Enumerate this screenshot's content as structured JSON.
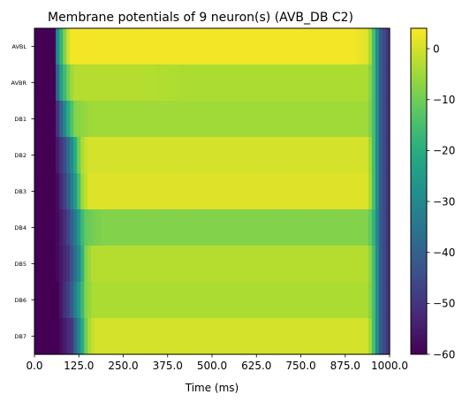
{
  "chart_data": {
    "type": "heatmap",
    "title": "Membrane potentials of 9 neuron(s) (AVB_DB C2)",
    "xlabel": "Time (ms)",
    "ylabel": "",
    "xlim": [
      0,
      1000
    ],
    "x_ticks": [
      "0.0",
      "125.0",
      "250.0",
      "375.0",
      "500.0",
      "625.0",
      "750.0",
      "875.0",
      "1000.0"
    ],
    "rows": [
      "AVBL",
      "AVBR",
      "DB1",
      "DB2",
      "DB3",
      "DB4",
      "DB5",
      "DB6",
      "DB7"
    ],
    "colorbar": {
      "colormap": "viridis",
      "vmin": -60,
      "vmax": 4,
      "ticks": [
        "0",
        "−10",
        "−20",
        "−30",
        "−40",
        "−50",
        "−60"
      ]
    },
    "series": [
      {
        "name": "AVBL",
        "knots": [
          [
            0,
            -60
          ],
          [
            55,
            -60
          ],
          [
            65,
            -30
          ],
          [
            80,
            -12
          ],
          [
            100,
            3
          ],
          [
            900,
            3
          ],
          [
            940,
            1
          ],
          [
            955,
            -15
          ],
          [
            975,
            -42
          ],
          [
            1000,
            -52
          ]
        ]
      },
      {
        "name": "AVBR",
        "knots": [
          [
            0,
            -60
          ],
          [
            55,
            -60
          ],
          [
            70,
            -28
          ],
          [
            90,
            -12
          ],
          [
            110,
            -3
          ],
          [
            300,
            -3
          ],
          [
            450,
            -4
          ],
          [
            940,
            -4
          ],
          [
            955,
            -15
          ],
          [
            975,
            -42
          ],
          [
            1000,
            -52
          ]
        ]
      },
      {
        "name": "DB1",
        "knots": [
          [
            0,
            -60
          ],
          [
            55,
            -60
          ],
          [
            75,
            -40
          ],
          [
            95,
            -20
          ],
          [
            115,
            -8
          ],
          [
            160,
            -5
          ],
          [
            940,
            -5
          ],
          [
            955,
            -15
          ],
          [
            975,
            -42
          ],
          [
            1000,
            -52
          ]
        ]
      },
      {
        "name": "DB2",
        "knots": [
          [
            0,
            -60
          ],
          [
            55,
            -60
          ],
          [
            85,
            -45
          ],
          [
            110,
            -25
          ],
          [
            130,
            -5
          ],
          [
            150,
            0
          ],
          [
            940,
            0
          ],
          [
            955,
            -15
          ],
          [
            975,
            -42
          ],
          [
            1000,
            -52
          ]
        ]
      },
      {
        "name": "DB3",
        "knots": [
          [
            0,
            -60
          ],
          [
            60,
            -60
          ],
          [
            90,
            -45
          ],
          [
            115,
            -25
          ],
          [
            135,
            -5
          ],
          [
            155,
            1
          ],
          [
            940,
            1
          ],
          [
            955,
            -15
          ],
          [
            975,
            -42
          ],
          [
            1000,
            -52
          ]
        ]
      },
      {
        "name": "DB4",
        "knots": [
          [
            0,
            -60
          ],
          [
            60,
            -60
          ],
          [
            90,
            -50
          ],
          [
            120,
            -30
          ],
          [
            140,
            -12
          ],
          [
            170,
            -9
          ],
          [
            200,
            -8
          ],
          [
            940,
            -8
          ],
          [
            955,
            -18
          ],
          [
            975,
            -42
          ],
          [
            1000,
            -52
          ]
        ]
      },
      {
        "name": "DB5",
        "knots": [
          [
            0,
            -60
          ],
          [
            60,
            -60
          ],
          [
            95,
            -50
          ],
          [
            125,
            -30
          ],
          [
            145,
            -8
          ],
          [
            165,
            -3
          ],
          [
            940,
            -3
          ],
          [
            955,
            -15
          ],
          [
            975,
            -42
          ],
          [
            1000,
            -52
          ]
        ]
      },
      {
        "name": "DB6",
        "knots": [
          [
            0,
            -60
          ],
          [
            65,
            -60
          ],
          [
            100,
            -45
          ],
          [
            125,
            -25
          ],
          [
            145,
            -8
          ],
          [
            165,
            -4
          ],
          [
            940,
            -4
          ],
          [
            955,
            -15
          ],
          [
            975,
            -42
          ],
          [
            1000,
            -52
          ]
        ]
      },
      {
        "name": "DB7",
        "knots": [
          [
            0,
            -60
          ],
          [
            65,
            -60
          ],
          [
            105,
            -50
          ],
          [
            130,
            -25
          ],
          [
            150,
            -5
          ],
          [
            170,
            0
          ],
          [
            940,
            0
          ],
          [
            955,
            -15
          ],
          [
            975,
            -42
          ],
          [
            1000,
            -52
          ]
        ]
      }
    ]
  }
}
